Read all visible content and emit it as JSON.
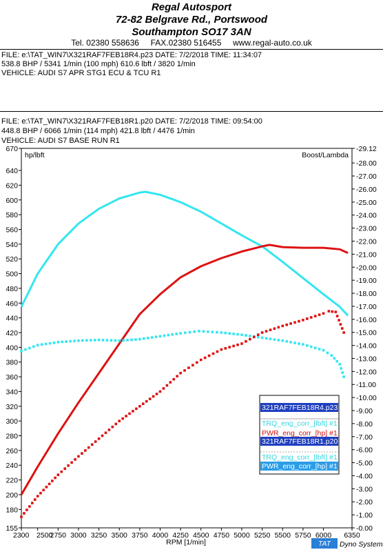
{
  "header": {
    "company": "Regal Autosport",
    "address1": "72-82 Belgrave Rd., Portswood",
    "address2": "Southampton SO17 3AN",
    "tel": "Tel. 02380 558636",
    "fax": "FAX.02380 516455",
    "web": "www.regal-auto.co.uk"
  },
  "run1": {
    "file": "FILE: e:\\TAT_WIN7\\X321RAF7FEB18R4.p23  DATE: 7/2/2018  TIME: 11:34:07",
    "power": "538.8 BHP / 5341 1/min (100 mph)   610.6 lbft / 3820 1/min",
    "vehicle": "VEHICLE: AUDI S7 APR STG1 ECU & TCU R1"
  },
  "run2": {
    "file": "FILE: e:\\TAT_WIN7\\X321RAF7FEB18R1.p20  DATE: 7/2/2018  TIME: 09:54:00",
    "power": "448.8 BHP / 6066 1/min (114 mph)   421.8 lbft / 4476 1/min",
    "vehicle": "VEHICLE: AUDI S7 BASE RUN R1"
  },
  "footer": {
    "tat": "TAT",
    "dyno": "Dyno Systems"
  },
  "colors": {
    "torque": "#33e6f0",
    "power": "#dd1111",
    "legend_sel": "#1f3fc0",
    "legend_sel2": "#2a9de8"
  },
  "chart_data": {
    "type": "line",
    "left_axis_label": "hp/lbft",
    "right_axis_label": "Boost/Lambda",
    "xlabel": "RPM  [1/min]",
    "xlim": [
      2300,
      6350
    ],
    "ylim_left": [
      155,
      670
    ],
    "ylim_right": [
      0,
      29.12
    ],
    "x_ticks": [
      "2300",
      "2500",
      "2750",
      "3000",
      "3250",
      "3500",
      "3750",
      "4000",
      "4250",
      "4500",
      "4750",
      "5000",
      "5250",
      "5500",
      "5750",
      "6000",
      "6350"
    ],
    "y_left_ticks": [
      "670",
      "640",
      "620",
      "600",
      "580",
      "560",
      "540",
      "520",
      "500",
      "480",
      "460",
      "440",
      "420",
      "400",
      "380",
      "360",
      "340",
      "320",
      "300",
      "280",
      "260",
      "240",
      "220",
      "200",
      "180",
      "155"
    ],
    "y_right_ticks": [
      "29.12",
      "28.00",
      "27.00",
      "26.00",
      "25.00",
      "24.00",
      "23.00",
      "22.00",
      "21.00",
      "20.00",
      "19.00",
      "18.00",
      "17.00",
      "16.00",
      "15.00",
      "14.00",
      "13.00",
      "12.00",
      "11.00",
      "10.00",
      "9.00",
      "8.00",
      "7.00",
      "6.00",
      "5.00",
      "4.00",
      "3.00",
      "2.00",
      "1.00",
      "0.00"
    ],
    "series": [
      {
        "name": "TRQ_eng_corr_[lbft] #1",
        "file": "321RAF7FEB18R4.p23",
        "style": "solid",
        "color": "#33e6f0",
        "x": [
          2300,
          2500,
          2750,
          3000,
          3250,
          3500,
          3750,
          3820,
          4000,
          4250,
          4500,
          4750,
          5000,
          5250,
          5500,
          5750,
          6000,
          6200,
          6300
        ],
        "y": [
          455,
          500,
          540,
          568,
          588,
          602,
          610,
          611,
          607,
          597,
          584,
          568,
          552,
          537,
          516,
          494,
          472,
          455,
          443
        ]
      },
      {
        "name": "PWR_eng_corr_[hp] #1",
        "file": "321RAF7FEB18R4.p23",
        "style": "solid",
        "color": "#dd1111",
        "x": [
          2300,
          2500,
          2750,
          3000,
          3250,
          3500,
          3750,
          4000,
          4250,
          4500,
          4750,
          5000,
          5250,
          5341,
          5500,
          5750,
          6000,
          6200,
          6300
        ],
        "y": [
          200,
          238,
          283,
          325,
          365,
          405,
          445,
          472,
          495,
          510,
          521,
          530,
          537,
          539,
          536,
          535,
          535,
          533,
          528
        ]
      },
      {
        "name": "TRQ_eng_corr_[lbft] #1",
        "file": "321RAF7FEB18R1.p20",
        "style": "dotted",
        "color": "#33e6f0",
        "x": [
          2300,
          2500,
          2750,
          3000,
          3250,
          3500,
          3750,
          4000,
          4250,
          4476,
          4750,
          5000,
          5250,
          5500,
          5750,
          6000,
          6100,
          6200,
          6250
        ],
        "y": [
          395,
          403,
          407,
          409,
          410,
          409,
          411,
          415,
          419,
          422,
          420,
          417,
          413,
          409,
          404,
          396,
          389,
          377,
          360
        ]
      },
      {
        "name": "PWR_eng_corr_[hp] #1",
        "file": "321RAF7FEB18R1.p20",
        "style": "dotted",
        "color": "#dd1111",
        "x": [
          2300,
          2500,
          2750,
          3000,
          3250,
          3500,
          3750,
          4000,
          4250,
          4500,
          4750,
          5000,
          5250,
          5500,
          5750,
          6000,
          6066,
          6150,
          6250
        ],
        "y": [
          170,
          198,
          227,
          252,
          276,
          300,
          320,
          340,
          365,
          383,
          397,
          405,
          420,
          429,
          437,
          446,
          449,
          448,
          420
        ]
      }
    ],
    "legend": [
      {
        "text": "321RAF7FEB18R4.p23",
        "kind": "file-selected"
      },
      {
        "text": "TRQ_eng_corr_[lbft] #1",
        "kind": "cyan"
      },
      {
        "text": "PWR_eng_corr_[hp] #1",
        "kind": "red"
      },
      {
        "text": "321RAF7FEB18R1.p20",
        "kind": "file-selected"
      },
      {
        "text": "TRQ_eng_corr_[lbft] #1",
        "kind": "cyan"
      },
      {
        "text": "PWR_eng_corr_[hp] #1",
        "kind": "selected-light"
      }
    ]
  }
}
